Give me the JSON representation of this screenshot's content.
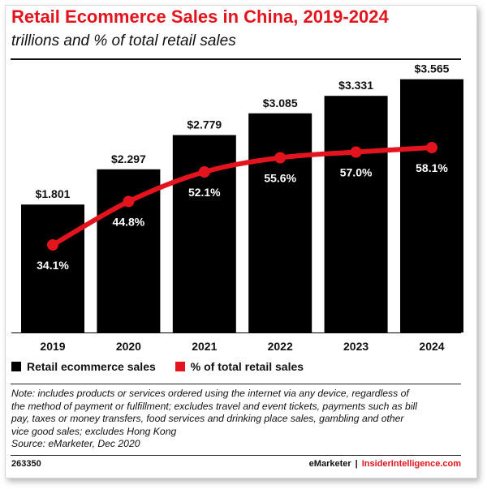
{
  "title": "Retail Ecommerce Sales in China, 2019-2024",
  "subtitle": "trillions and % of total retail sales",
  "chart_data": {
    "type": "bar",
    "categories": [
      "2019",
      "2020",
      "2021",
      "2022",
      "2023",
      "2024"
    ],
    "series": [
      {
        "name": "Retail ecommerce sales",
        "type": "bar",
        "values": [
          1.801,
          2.297,
          2.779,
          3.085,
          3.331,
          3.565
        ],
        "labels": [
          "$1.801",
          "$2.297",
          "$2.779",
          "$3.085",
          "$3.331",
          "$3.565"
        ],
        "color": "#000000"
      },
      {
        "name": "% of total retail sales",
        "type": "line",
        "values": [
          34.1,
          44.8,
          52.1,
          55.6,
          57.0,
          58.1
        ],
        "labels": [
          "34.1%",
          "44.8%",
          "52.1%",
          "55.6%",
          "57.0%",
          "58.1%"
        ],
        "color": "#e3141d"
      }
    ],
    "grid": false,
    "legend_position": "bottom-left"
  },
  "legend": {
    "bar_label": "Retail ecommerce sales",
    "line_label": "% of total retail sales"
  },
  "note_lines": [
    "Note: includes products or services ordered using the internet via any device, regardless of",
    "the method of payment or fulfillment; excludes travel and event tickets, payments such as bill",
    "pay, taxes or money transfers, food services and drinking place sales, gambling and other",
    "vice good sales; excludes Hong Kong",
    "Source: eMarketer, Dec 2020"
  ],
  "footer": {
    "id": "263350",
    "brand_left": "eMarketer",
    "separator": "|",
    "brand_right": "InsiderIntelligence.com"
  },
  "colors": {
    "accent": "#e3141d",
    "bars": "#000000",
    "text": "#111111"
  }
}
